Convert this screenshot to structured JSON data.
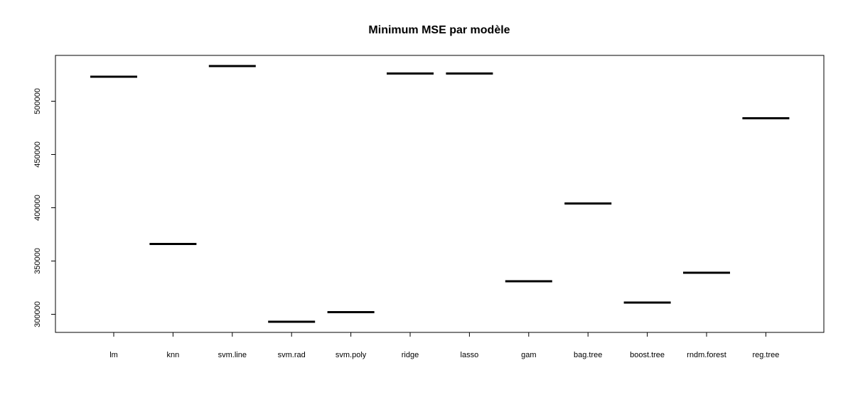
{
  "chart_data": {
    "type": "bar",
    "mark_style": "horizontal-segment",
    "title": "Minimum MSE par modèle",
    "xlabel": "",
    "ylabel": "",
    "categories": [
      "lm",
      "knn",
      "svm.line",
      "svm.rad",
      "svm.poly",
      "ridge",
      "lasso",
      "gam",
      "bag.tree",
      "boost.tree",
      "rndm.forest",
      "reg.tree"
    ],
    "values": [
      523000,
      366000,
      533000,
      293000,
      302000,
      526000,
      526000,
      331000,
      404000,
      311000,
      339000,
      484000
    ],
    "ylim": [
      283000,
      543000
    ],
    "yticks": [
      300000,
      350000,
      400000,
      450000,
      500000
    ],
    "ytick_labels": [
      "300000",
      "350000",
      "400000",
      "450000",
      "500000"
    ],
    "grid": false,
    "legend": "none",
    "colors": {
      "mark": "#000000",
      "axis": "#000000",
      "background": "#ffffff"
    }
  }
}
